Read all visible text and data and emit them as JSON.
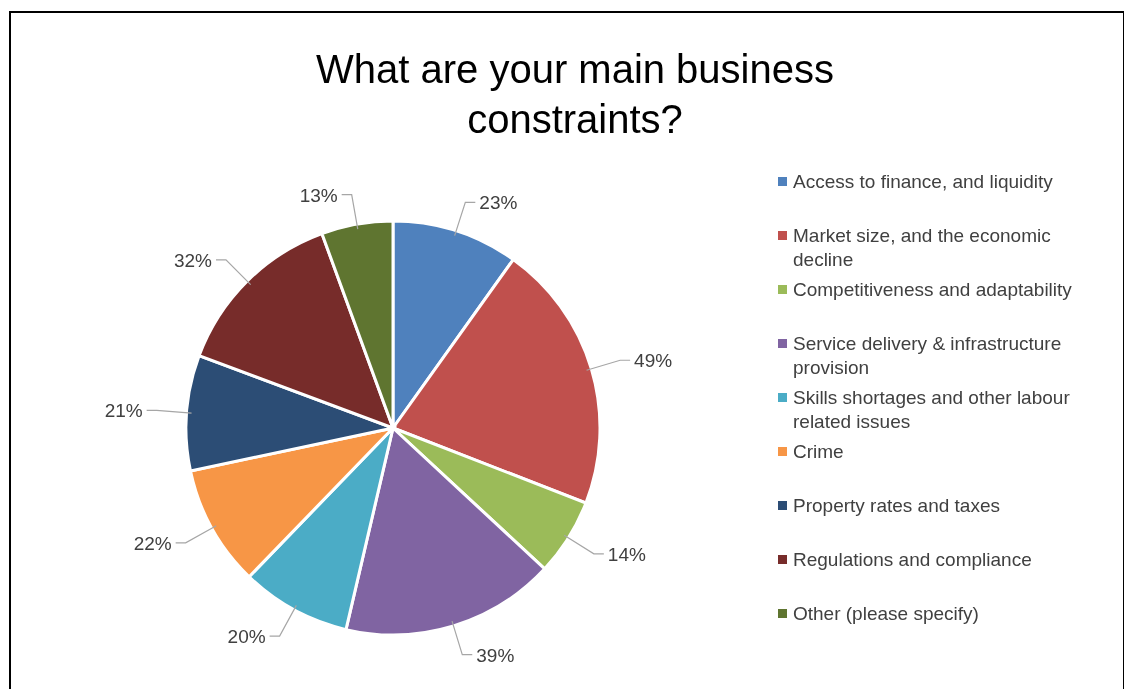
{
  "chart_data": {
    "type": "pie",
    "title": "What are your main business constraints?",
    "categories": [
      "Access to finance, and liquidity",
      "Market size, and the economic decline",
      "Competitiveness and adaptability",
      "Service delivery & infrastructure provision",
      "Skills shortages and other labour related issues",
      "Crime",
      "Property rates and taxes",
      "Regulations and compliance",
      "Other (please specify)"
    ],
    "values": [
      23,
      49,
      14,
      39,
      20,
      22,
      21,
      32,
      13
    ],
    "value_labels": [
      "23%",
      "49%",
      "14%",
      "39%",
      "20%",
      "22%",
      "21%",
      "32%",
      "13%"
    ],
    "colors": [
      "#4f81bd",
      "#c0504d",
      "#9bbb59",
      "#8064a2",
      "#4bacc6",
      "#f79646",
      "#2c4d75",
      "#772c2a",
      "#5f7530"
    ],
    "legend": "right"
  }
}
